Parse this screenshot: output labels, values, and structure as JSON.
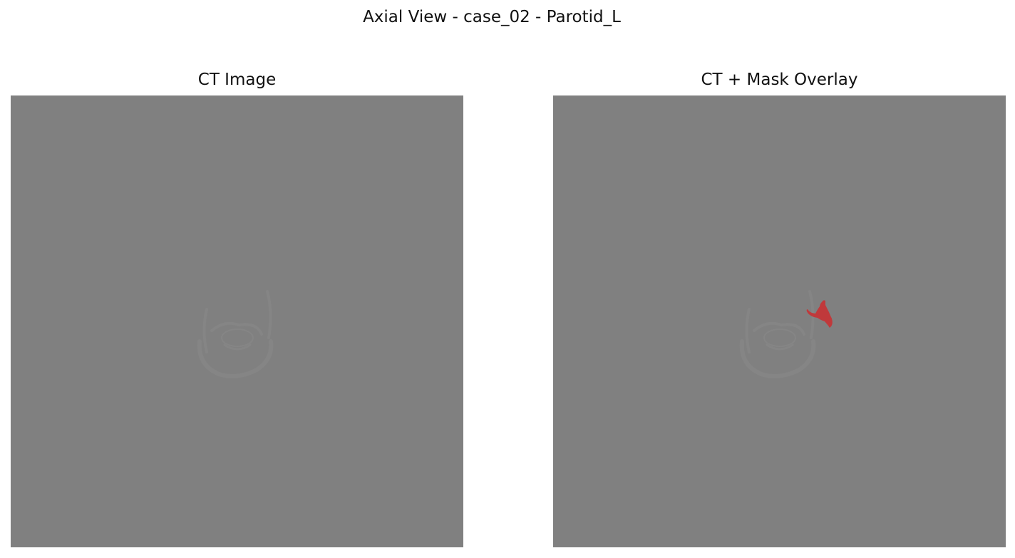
{
  "figure": {
    "title": "Axial View - case_02 - Parotid_L",
    "panels": [
      {
        "title": "CT Image",
        "show_mask": false
      },
      {
        "title": "CT + Mask Overlay",
        "show_mask": true
      }
    ]
  },
  "colors": {
    "background": "#808080",
    "tissue_faint": "#858585",
    "mask": "#c0393b"
  }
}
